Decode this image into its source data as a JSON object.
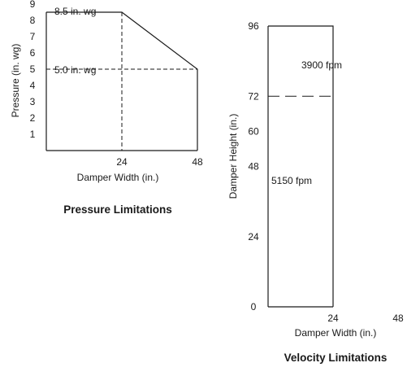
{
  "chart_data": [
    {
      "type": "area",
      "title": "Pressure Limitations",
      "xlabel": "Damper Width (in.)",
      "ylabel": "Pressure (in. wg)",
      "xlim": [
        0,
        48
      ],
      "ylim": [
        0,
        9
      ],
      "x_ticks": [
        "24",
        "48"
      ],
      "x_tick_values": [
        24,
        48
      ],
      "y_ticks": [
        "1",
        "2",
        "3",
        "4",
        "5",
        "6",
        "7",
        "8",
        "9"
      ],
      "y_tick_values": [
        1,
        2,
        3,
        4,
        5,
        6,
        7,
        8,
        9
      ],
      "boundary": {
        "x": [
          0,
          24,
          48,
          48
        ],
        "y": [
          8.5,
          8.5,
          5,
          0
        ]
      },
      "reference_lines": [
        {
          "orientation": "horizontal",
          "value": 5,
          "label": "5.0 in. wg"
        },
        {
          "orientation": "vertical",
          "value": 24
        }
      ],
      "annotations": [
        {
          "text": "8.5 in. wg",
          "x": 1.5,
          "y": 8.5
        }
      ],
      "grid": false
    },
    {
      "type": "area",
      "title": "Velocity Limitations",
      "xlabel": "Damper Width (in.)",
      "ylabel": "Damper Height (in.)",
      "xlim": [
        0,
        48
      ],
      "ylim": [
        0,
        96
      ],
      "x_ticks": [
        "24",
        "48"
      ],
      "x_tick_values": [
        24,
        48
      ],
      "y_ticks": [
        "0",
        "24",
        "48",
        "60",
        "72",
        "96"
      ],
      "y_tick_values": [
        0,
        24,
        48,
        60,
        72,
        96
      ],
      "boundary": {
        "x": [
          0,
          24,
          24,
          0
        ],
        "y": [
          96,
          96,
          0,
          0
        ]
      },
      "reference_lines": [
        {
          "orientation": "horizontal",
          "value": 72,
          "x_range": [
            0,
            24
          ]
        },
        {
          "orientation": "vertical",
          "value": 24,
          "y_range": [
            0,
            72
          ]
        }
      ],
      "regions": [
        {
          "label": "3900 fpm",
          "x": 11,
          "y": 86
        },
        {
          "label": "5150 fpm",
          "x": 5.5,
          "y": 44
        }
      ],
      "grid": false
    }
  ]
}
